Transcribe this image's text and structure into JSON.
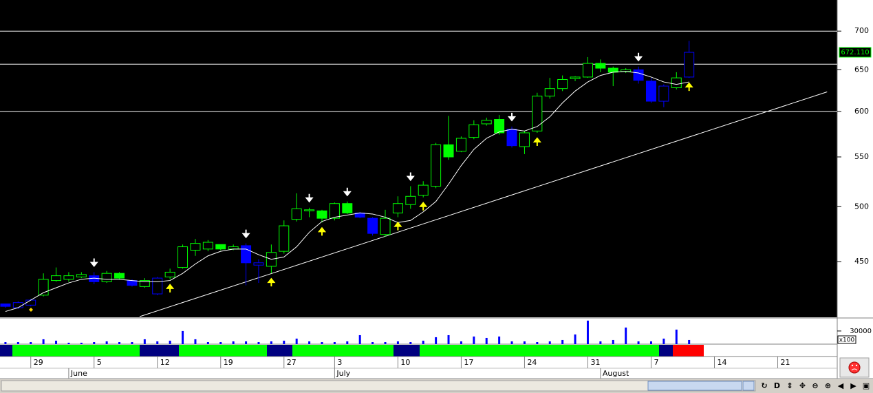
{
  "chart_data": [
    {
      "type": "candlestick",
      "open": [
        415,
        412,
        414,
        422,
        434,
        435,
        437,
        438,
        433,
        440,
        434,
        429,
        423,
        437,
        445,
        460,
        461,
        465,
        461,
        464,
        447,
        446,
        459,
        488,
        496,
        496,
        489,
        503,
        494,
        489,
        474,
        494,
        502,
        511,
        520,
        563,
        556,
        571,
        586,
        591,
        580,
        561,
        578,
        618,
        627,
        639,
        641,
        658,
        652,
        648,
        650,
        636,
        612,
        628,
        641
      ],
      "high": [
        415,
        417,
        419,
        440,
        445,
        441,
        441,
        441,
        442,
        441,
        435,
        436,
        437,
        444,
        465,
        470,
        469,
        465,
        465,
        466,
        452,
        465,
        487,
        513,
        499,
        497,
        504,
        505,
        495,
        490,
        497,
        510,
        520,
        525,
        565,
        595,
        572,
        590,
        593,
        596,
        583,
        578,
        622,
        640,
        643,
        642,
        666,
        663,
        654,
        652,
        654,
        640,
        632,
        647,
        687
      ],
      "low": [
        412,
        411,
        413,
        421,
        433,
        433,
        436,
        431,
        432,
        435,
        429,
        428,
        422,
        435,
        444,
        455,
        459,
        460,
        460,
        430,
        432,
        440,
        457,
        486,
        490,
        485,
        487,
        493,
        489,
        473,
        472,
        490,
        498,
        509,
        518,
        547,
        555,
        569,
        584,
        574,
        560,
        553,
        576,
        615,
        624,
        636,
        640,
        647,
        630,
        646,
        633,
        610,
        605,
        626,
        640
      ],
      "close": [
        413,
        416,
        418,
        435,
        438,
        438,
        439,
        433,
        440,
        436,
        430,
        434,
        436,
        441,
        463,
        466,
        467,
        461,
        463,
        449,
        449,
        458,
        482,
        498,
        497,
        489,
        503,
        494,
        490,
        475,
        489,
        503,
        510,
        521,
        563,
        550,
        570,
        585,
        590,
        576,
        562,
        576,
        618,
        627,
        638,
        641,
        658,
        652,
        647,
        650,
        637,
        612,
        630,
        640,
        672.11
      ],
      "colors": [
        "#0000ff",
        "#0000ff",
        "#0000ff",
        "#00ff00",
        "#00ff00",
        "#00ff00",
        "#00ff00",
        "#0000ff",
        "#00ff00",
        "#00ff00",
        "#0000ff",
        "#00ff00",
        "#0000ff",
        "#00ff00",
        "#00ff00",
        "#00ff00",
        "#00ff00",
        "#00ff00",
        "#00ff00",
        "#0000ff",
        "#0000ff",
        "#00ff00",
        "#00ff00",
        "#00ff00",
        "#00ff00",
        "#00ff00",
        "#00ff00",
        "#00ff00",
        "#0000ff",
        "#0000ff",
        "#00ff00",
        "#00ff00",
        "#00ff00",
        "#00ff00",
        "#00ff00",
        "#00ff00",
        "#00ff00",
        "#00ff00",
        "#00ff00",
        "#00ff00",
        "#0000ff",
        "#00ff00",
        "#00ff00",
        "#00ff00",
        "#00ff00",
        "#00ff00",
        "#00ff00",
        "#00ff00",
        "#00ff00",
        "#00ff00",
        "#0000ff",
        "#0000ff",
        "#0000ff",
        "#00ff00",
        "#0000ff"
      ],
      "ma": [
        409,
        412,
        418,
        424,
        428,
        432,
        435,
        436,
        435,
        435,
        434,
        433,
        433,
        434,
        440,
        448,
        455,
        459,
        461,
        461,
        456,
        452,
        454,
        463,
        476,
        486,
        490,
        492,
        494,
        493,
        490,
        485,
        487,
        495,
        505,
        522,
        541,
        558,
        570,
        577,
        580,
        578,
        583,
        594,
        610,
        624,
        635,
        643,
        647,
        648,
        646,
        641,
        635,
        632,
        635
      ],
      "ma_color": "#ffffff",
      "log_scale": true,
      "ylim": [
        405,
        743
      ],
      "yticks": [
        450,
        500,
        550,
        600,
        650,
        700
      ],
      "xlim": [
        -0.43,
        65.7
      ],
      "xticks": [
        {
          "value": 2,
          "label": "29"
        },
        {
          "value": 7,
          "label": "5"
        },
        {
          "value": 12,
          "label": "12"
        },
        {
          "value": 17,
          "label": "19"
        },
        {
          "value": 22,
          "label": "27"
        },
        {
          "value": 26,
          "label": "3"
        },
        {
          "value": 31,
          "label": "10"
        },
        {
          "value": 36,
          "label": "17"
        },
        {
          "value": 41,
          "label": "24"
        },
        {
          "value": 46,
          "label": "31"
        },
        {
          "value": 51,
          "label": "7"
        },
        {
          "value": 56,
          "label": "14"
        },
        {
          "value": 61,
          "label": "21"
        }
      ],
      "month_ticks": [
        {
          "value": 5,
          "label": "June"
        },
        {
          "value": 26,
          "label": "July"
        },
        {
          "value": 47,
          "label": "August"
        }
      ],
      "levels": [
        700,
        657,
        600
      ],
      "trendline": {
        "x": [
          10.6,
          64.9
        ],
        "y": [
          405,
          623
        ]
      },
      "down_arrows": [
        7,
        19,
        24,
        27,
        32,
        40,
        50
      ],
      "up_arrows": [
        13,
        21,
        25,
        31,
        33,
        42,
        54
      ],
      "last_price": {
        "value": 672.11,
        "label": "672.110"
      }
    },
    {
      "type": "volume-bar",
      "values": [
        4700,
        4700,
        4700,
        11100,
        7900,
        3200,
        3200,
        4700,
        6300,
        4700,
        4700,
        11100,
        6300,
        7900,
        30000,
        11100,
        4700,
        4700,
        6300,
        6300,
        4700,
        6300,
        7900,
        12600,
        6300,
        4700,
        4700,
        6300,
        20500,
        4700,
        4700,
        6300,
        4700,
        7900,
        15800,
        20500,
        6300,
        17400,
        14200,
        17400,
        6300,
        6300,
        4700,
        6300,
        9500,
        22100,
        53700,
        6300,
        9500,
        37900,
        6300,
        6300,
        12600,
        33200,
        9500
      ],
      "color": "#0000ff",
      "ylim": [
        0,
        55000
      ],
      "yticks": [
        30000
      ],
      "unit_label": "x100",
      "xlim": [
        -0.43,
        65.7
      ]
    }
  ],
  "toolbar": [
    "↻",
    "D",
    "⇕",
    "✥",
    "⊖",
    "⊕",
    "◀",
    "▶",
    "▣"
  ]
}
